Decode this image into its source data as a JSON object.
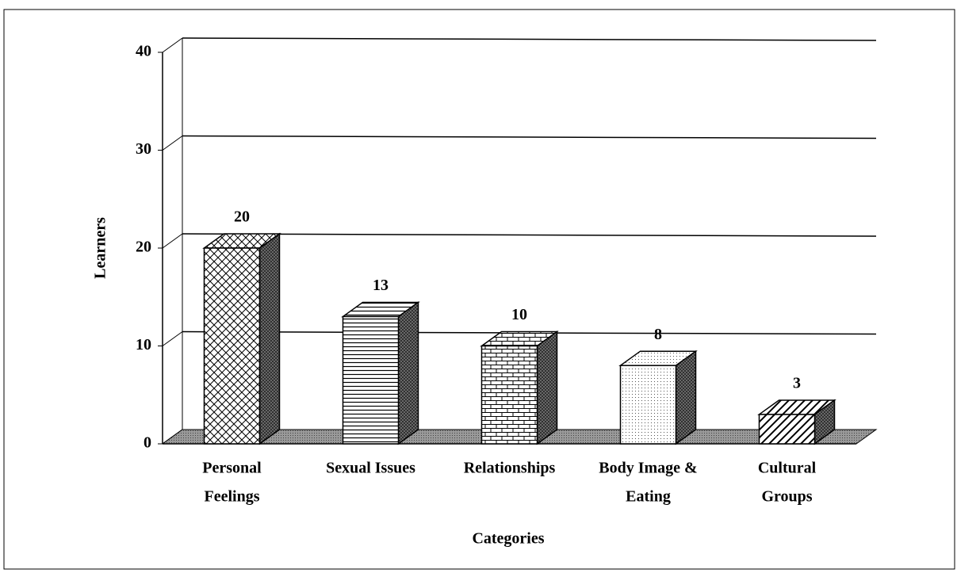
{
  "chart_data": {
    "type": "bar3d",
    "ylabel": "Learners",
    "xlabel": "Categories",
    "categories": [
      [
        "Personal",
        "Feelings"
      ],
      [
        "Sexual Issues"
      ],
      [
        "Relationships"
      ],
      [
        "Body Image &",
        "Eating"
      ],
      [
        "Cultural",
        "Groups"
      ]
    ],
    "values": [
      20,
      13,
      10,
      8,
      3
    ],
    "patterns": [
      "crosshatch",
      "horizontal",
      "brick",
      "dots",
      "diagonal"
    ],
    "color": "#000000",
    "ylim": [
      0,
      40
    ],
    "yticks": [
      0,
      10,
      20,
      30,
      40
    ],
    "grid": true
  }
}
